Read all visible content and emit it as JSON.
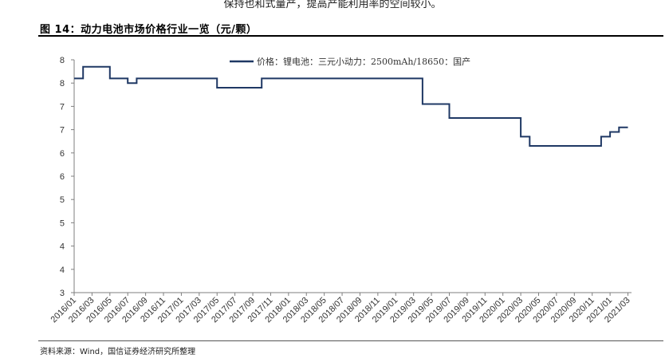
{
  "header": {
    "context_text": "保持也和式量产，提高产能利用率的空间较小。",
    "figure_title": "图 14：动力电池市场价格行业一览（元/颗）"
  },
  "footer": {
    "source": "资料来源：Wind，国信证券经济研究所整理"
  },
  "colors": {
    "series": "#1f3864",
    "axis": "#7f7f7f",
    "rule": "#000000"
  },
  "chart_data": {
    "type": "line",
    "title": "",
    "xlabel": "",
    "ylabel": "",
    "ylim": [
      3,
      8
    ],
    "y_tick_labels": [
      "3",
      "4",
      "4",
      "5",
      "5",
      "6",
      "6",
      "7",
      "7",
      "8",
      "8"
    ],
    "x_tick_labels": [
      "2016/01",
      "2016/03",
      "2016/05",
      "2016/07",
      "2016/09",
      "2016/11",
      "2017/01",
      "2017/03",
      "2017/05",
      "2017/07",
      "2017/09",
      "2017/11",
      "2018/01",
      "2018/03",
      "2018/05",
      "2018/07",
      "2018/09",
      "2018/11",
      "2019/01",
      "2019/03",
      "2019/05",
      "2019/07",
      "2019/09",
      "2019/11",
      "2020/01",
      "2020/03",
      "2020/05",
      "2020/07",
      "2020/09",
      "2020/11",
      "2021/01",
      "2021/03"
    ],
    "grid": false,
    "legend": "top-center",
    "series": [
      {
        "name": "价格：锂电池：三元小动力：2500mAh/18650：国产",
        "values": [
          [
            "2016/01",
            7.6
          ],
          [
            "2016/02",
            7.6
          ],
          [
            "2016/02",
            7.85
          ],
          [
            "2016/05",
            7.85
          ],
          [
            "2016/05",
            7.6
          ],
          [
            "2016/07",
            7.6
          ],
          [
            "2016/07",
            7.5
          ],
          [
            "2016/08",
            7.5
          ],
          [
            "2016/08",
            7.6
          ],
          [
            "2017/05",
            7.6
          ],
          [
            "2017/05",
            7.4
          ],
          [
            "2017/10",
            7.4
          ],
          [
            "2017/10",
            7.6
          ],
          [
            "2019/04",
            7.6
          ],
          [
            "2019/04",
            7.05
          ],
          [
            "2019/07",
            7.05
          ],
          [
            "2019/07",
            6.75
          ],
          [
            "2020/03",
            6.75
          ],
          [
            "2020/03",
            6.35
          ],
          [
            "2020/04",
            6.35
          ],
          [
            "2020/04",
            6.15
          ],
          [
            "2020/12",
            6.15
          ],
          [
            "2020/12",
            6.35
          ],
          [
            "2021/01",
            6.35
          ],
          [
            "2021/01",
            6.45
          ],
          [
            "2021/02",
            6.45
          ],
          [
            "2021/02",
            6.55
          ],
          [
            "2021/03",
            6.55
          ]
        ]
      }
    ]
  }
}
